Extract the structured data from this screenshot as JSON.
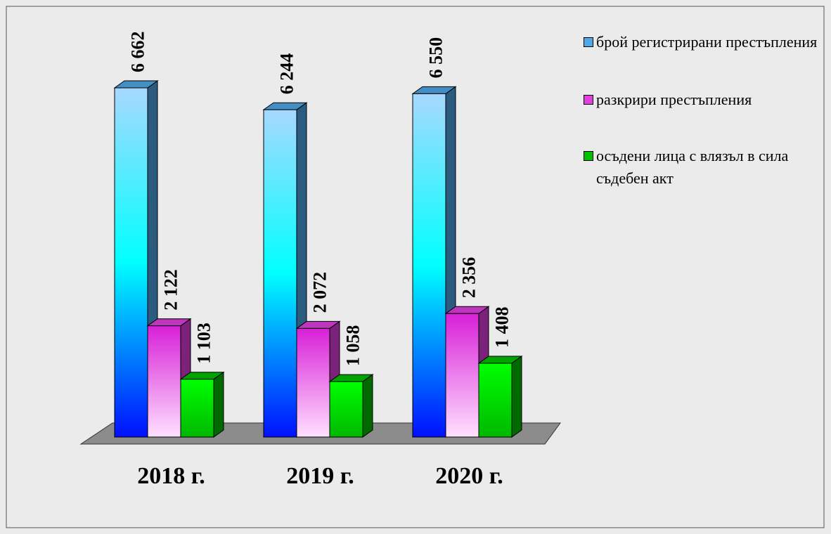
{
  "chart_data": {
    "type": "bar3d",
    "categories": [
      "2018 г.",
      "2019 г.",
      "2020 г."
    ],
    "series": [
      {
        "name": "брой регистрирани престъпления",
        "color": "#4fa8e8",
        "values": [
          6662,
          6244,
          6550
        ],
        "value_labels": [
          "6 662",
          "6 244",
          "6 550"
        ]
      },
      {
        "name": "разкрири престъпления",
        "color": "#e040e0",
        "values": [
          2122,
          2072,
          2356
        ],
        "value_labels": [
          "2 122",
          "2 072",
          "2 356"
        ]
      },
      {
        "name": "осъдени лица с влязъл в сила съдебен акт",
        "color": "#00c000",
        "values": [
          1103,
          1058,
          1408
        ],
        "value_labels": [
          "1 103",
          "1 058",
          "1 408"
        ]
      }
    ],
    "legend": "right"
  }
}
